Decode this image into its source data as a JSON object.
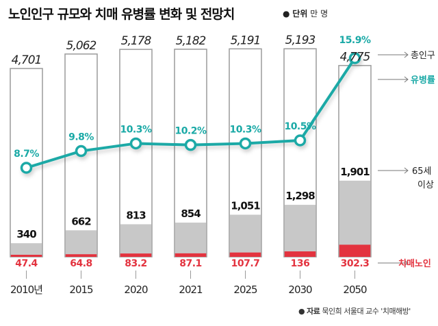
{
  "header": {
    "title": "노인인구 규모와 치매 유병률 변화 및 전망치",
    "unit_label": "단위",
    "unit_value": "만 명"
  },
  "footer": {
    "source_label": "자료",
    "source_text": "묵인희 서울대 교수 '치매해방'"
  },
  "legend": {
    "total": "총인구",
    "rate": "유병률",
    "elderly_line1": "65세",
    "elderly_line2": "이상",
    "dementia": "치매노인"
  },
  "colors": {
    "total_border": "#9a9a9a",
    "elderly_fill": "#c8c8c8",
    "dementia_fill": "#e3333f",
    "rate_line": "#1aa9a6"
  },
  "chart_data": {
    "type": "bar",
    "title": "노인인구 규모와 치매 유병률 변화 및 전망치",
    "unit": "만 명",
    "categories": [
      "2010년",
      "2015",
      "2020",
      "2021",
      "2025",
      "2030",
      "2050"
    ],
    "series": [
      {
        "name": "총인구",
        "values": [
          4701,
          5062,
          5178,
          5182,
          5191,
          5193,
          4775
        ],
        "labels": [
          "4,701",
          "5,062",
          "5,178",
          "5,182",
          "5,191",
          "5,193",
          "4,775"
        ]
      },
      {
        "name": "65세 이상",
        "values": [
          340,
          662,
          813,
          854,
          1051,
          1298,
          1901
        ],
        "labels": [
          "340",
          "662",
          "813",
          "854",
          "1,051",
          "1,298",
          "1,901"
        ]
      },
      {
        "name": "치매노인",
        "values": [
          47.4,
          64.8,
          83.2,
          87.1,
          107.7,
          136,
          302.3
        ],
        "labels": [
          "47.4",
          "64.8",
          "83.2",
          "87.1",
          "107.7",
          "136",
          "302.3"
        ]
      },
      {
        "name": "유병률",
        "type": "line",
        "values": [
          8.7,
          9.8,
          10.3,
          10.2,
          10.3,
          10.5,
          15.9
        ],
        "labels": [
          "8.7%",
          "9.8%",
          "10.3%",
          "10.2%",
          "10.3%",
          "10.5%",
          "15.9%"
        ]
      }
    ],
    "grid": false,
    "legend_position": "right"
  }
}
